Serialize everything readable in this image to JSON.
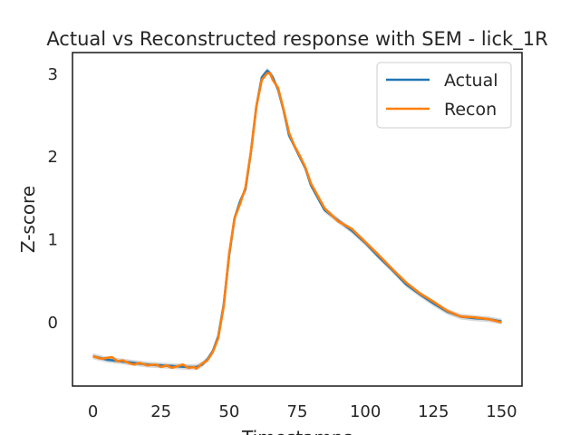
{
  "chart_data": {
    "type": "line",
    "title": "Actual vs Reconstructed response with SEM - lick_1R",
    "xlabel": "Timestamps",
    "ylabel": "Z-score",
    "xlim": [
      -7.5,
      157.5
    ],
    "ylim": [
      -0.78,
      3.25
    ],
    "xticks": [
      0,
      25,
      50,
      75,
      100,
      125,
      150
    ],
    "yticks": [
      0,
      1,
      2,
      3
    ],
    "grid": false,
    "legend": {
      "placement": "top-right"
    },
    "series": [
      {
        "name": "Actual",
        "color": "#1f77b4",
        "x": [
          0,
          5,
          10,
          15,
          20,
          25,
          30,
          35,
          38,
          40,
          42,
          44,
          46,
          48,
          50,
          52,
          54,
          56,
          58,
          60,
          62,
          64,
          65,
          66,
          68,
          70,
          72,
          75,
          78,
          80,
          85,
          90,
          95,
          100,
          105,
          110,
          115,
          120,
          125,
          130,
          135,
          140,
          145,
          150
        ],
        "y": [
          -0.42,
          -0.46,
          -0.48,
          -0.5,
          -0.52,
          -0.53,
          -0.54,
          -0.55,
          -0.55,
          -0.52,
          -0.46,
          -0.36,
          -0.18,
          0.2,
          0.8,
          1.25,
          1.45,
          1.6,
          2.05,
          2.6,
          2.95,
          3.03,
          3.0,
          2.95,
          2.8,
          2.55,
          2.25,
          2.05,
          1.85,
          1.65,
          1.35,
          1.22,
          1.1,
          0.95,
          0.78,
          0.62,
          0.45,
          0.33,
          0.22,
          0.12,
          0.06,
          0.04,
          0.03,
          0.0
        ]
      },
      {
        "name": "Recon",
        "color": "#ff7f0e",
        "x": [
          0,
          3,
          5,
          7,
          9,
          11,
          13,
          15,
          17,
          20,
          23,
          25,
          27,
          29,
          31,
          33,
          35,
          37,
          38,
          40,
          42,
          44,
          46,
          48,
          50,
          52,
          54,
          56,
          58,
          60,
          62,
          64,
          65,
          66,
          68,
          70,
          72,
          74,
          76,
          78,
          80,
          85,
          90,
          95,
          100,
          105,
          110,
          115,
          120,
          125,
          130,
          135,
          140,
          145,
          150
        ],
        "y": [
          -0.42,
          -0.45,
          -0.44,
          -0.43,
          -0.48,
          -0.47,
          -0.5,
          -0.52,
          -0.5,
          -0.53,
          -0.52,
          -0.55,
          -0.53,
          -0.56,
          -0.54,
          -0.52,
          -0.56,
          -0.55,
          -0.57,
          -0.51,
          -0.47,
          -0.37,
          -0.2,
          0.18,
          0.82,
          1.25,
          1.42,
          1.62,
          2.05,
          2.6,
          2.92,
          3.0,
          3.0,
          2.92,
          2.82,
          2.56,
          2.28,
          2.12,
          2.0,
          1.86,
          1.67,
          1.37,
          1.21,
          1.12,
          0.96,
          0.8,
          0.63,
          0.47,
          0.34,
          0.24,
          0.13,
          0.06,
          0.05,
          0.03,
          -0.01
        ]
      }
    ]
  }
}
